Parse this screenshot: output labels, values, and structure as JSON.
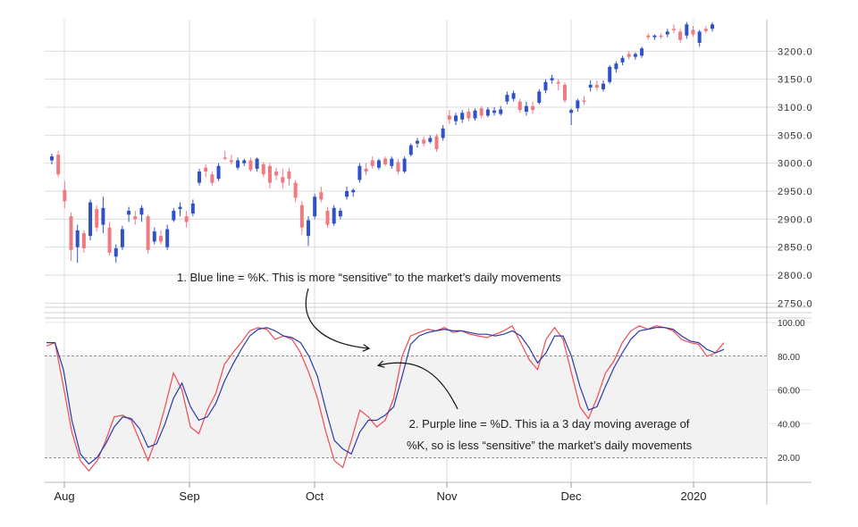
{
  "chart_data": [
    {
      "type": "candlestick",
      "title": "",
      "xlabel": "",
      "ylabel": "",
      "ylim": [
        2730,
        3250
      ],
      "y_ticks": [
        "3200.0",
        "3150.0",
        "3100.0",
        "3050.0",
        "3000.0",
        "2950.0",
        "2900.0",
        "2850.0",
        "2800.0",
        "2750.0"
      ],
      "x_ticks": [
        "Aug",
        "Sep",
        "Oct",
        "Nov",
        "Dec",
        "2020"
      ],
      "up_color": "#2f52c9",
      "down_color": "#ef7a82",
      "candles": [
        {
          "o": 3005,
          "h": 3017,
          "l": 2998,
          "c": 3012
        },
        {
          "o": 3015,
          "h": 3022,
          "l": 2975,
          "c": 2980
        },
        {
          "o": 2952,
          "h": 2968,
          "l": 2920,
          "c": 2932
        },
        {
          "o": 2905,
          "h": 2912,
          "l": 2825,
          "c": 2845
        },
        {
          "o": 2850,
          "h": 2890,
          "l": 2822,
          "c": 2880
        },
        {
          "o": 2875,
          "h": 2880,
          "l": 2840,
          "c": 2848
        },
        {
          "o": 2870,
          "h": 2935,
          "l": 2862,
          "c": 2930
        },
        {
          "o": 2918,
          "h": 2925,
          "l": 2878,
          "c": 2885
        },
        {
          "o": 2890,
          "h": 2940,
          "l": 2875,
          "c": 2920
        },
        {
          "o": 2885,
          "h": 2895,
          "l": 2835,
          "c": 2840
        },
        {
          "o": 2833,
          "h": 2855,
          "l": 2822,
          "c": 2848
        },
        {
          "o": 2850,
          "h": 2888,
          "l": 2845,
          "c": 2882
        },
        {
          "o": 2908,
          "h": 2922,
          "l": 2895,
          "c": 2915
        },
        {
          "o": 2905,
          "h": 2915,
          "l": 2890,
          "c": 2900
        },
        {
          "o": 2908,
          "h": 2925,
          "l": 2895,
          "c": 2920
        },
        {
          "o": 2905,
          "h": 2908,
          "l": 2838,
          "c": 2845
        },
        {
          "o": 2860,
          "h": 2885,
          "l": 2855,
          "c": 2878
        },
        {
          "o": 2870,
          "h": 2880,
          "l": 2855,
          "c": 2860
        },
        {
          "o": 2850,
          "h": 2890,
          "l": 2845,
          "c": 2882
        },
        {
          "o": 2898,
          "h": 2920,
          "l": 2895,
          "c": 2915
        },
        {
          "o": 2918,
          "h": 2930,
          "l": 2905,
          "c": 2922
        },
        {
          "o": 2905,
          "h": 2915,
          "l": 2885,
          "c": 2895
        },
        {
          "o": 2910,
          "h": 2935,
          "l": 2905,
          "c": 2928
        },
        {
          "o": 2965,
          "h": 2990,
          "l": 2960,
          "c": 2985
        },
        {
          "o": 2992,
          "h": 2998,
          "l": 2975,
          "c": 2985
        },
        {
          "o": 2980,
          "h": 2985,
          "l": 2960,
          "c": 2965
        },
        {
          "o": 2972,
          "h": 3000,
          "l": 2968,
          "c": 2995
        },
        {
          "o": 3010,
          "h": 3022,
          "l": 3005,
          "c": 3008
        },
        {
          "o": 3005,
          "h": 3015,
          "l": 2998,
          "c": 3002
        },
        {
          "o": 2992,
          "h": 3010,
          "l": 2988,
          "c": 3005
        },
        {
          "o": 3000,
          "h": 3008,
          "l": 2995,
          "c": 3005
        },
        {
          "o": 3005,
          "h": 3010,
          "l": 2985,
          "c": 2988
        },
        {
          "o": 2990,
          "h": 3010,
          "l": 2985,
          "c": 3008
        },
        {
          "o": 2998,
          "h": 3002,
          "l": 2975,
          "c": 2980
        },
        {
          "o": 2995,
          "h": 3000,
          "l": 2955,
          "c": 2965
        },
        {
          "o": 2985,
          "h": 2992,
          "l": 2970,
          "c": 2978
        },
        {
          "o": 2975,
          "h": 2990,
          "l": 2955,
          "c": 2965
        },
        {
          "o": 2985,
          "h": 2992,
          "l": 2960,
          "c": 2972
        },
        {
          "o": 2965,
          "h": 2970,
          "l": 2930,
          "c": 2938
        },
        {
          "o": 2925,
          "h": 2932,
          "l": 2872,
          "c": 2885
        },
        {
          "o": 2870,
          "h": 2905,
          "l": 2852,
          "c": 2898
        },
        {
          "o": 2905,
          "h": 2945,
          "l": 2900,
          "c": 2940
        },
        {
          "o": 2948,
          "h": 2958,
          "l": 2930,
          "c": 2935
        },
        {
          "o": 2915,
          "h": 2922,
          "l": 2885,
          "c": 2890
        },
        {
          "o": 2892,
          "h": 2925,
          "l": 2888,
          "c": 2920
        },
        {
          "o": 2905,
          "h": 2920,
          "l": 2900,
          "c": 2915
        },
        {
          "o": 2940,
          "h": 2958,
          "l": 2935,
          "c": 2950
        },
        {
          "o": 2948,
          "h": 2955,
          "l": 2940,
          "c": 2952
        },
        {
          "o": 2970,
          "h": 3000,
          "l": 2965,
          "c": 2995
        },
        {
          "o": 2990,
          "h": 3000,
          "l": 2978,
          "c": 2985
        },
        {
          "o": 3005,
          "h": 3012,
          "l": 2990,
          "c": 2995
        },
        {
          "o": 2992,
          "h": 3008,
          "l": 2988,
          "c": 3005
        },
        {
          "o": 3008,
          "h": 3012,
          "l": 2995,
          "c": 2998
        },
        {
          "o": 2995,
          "h": 3012,
          "l": 2990,
          "c": 3008
        },
        {
          "o": 3002,
          "h": 3008,
          "l": 2980,
          "c": 2985
        },
        {
          "o": 2985,
          "h": 3012,
          "l": 2982,
          "c": 3008
        },
        {
          "o": 3015,
          "h": 3035,
          "l": 3012,
          "c": 3032
        },
        {
          "o": 3035,
          "h": 3045,
          "l": 3028,
          "c": 3040
        },
        {
          "o": 3042,
          "h": 3048,
          "l": 3030,
          "c": 3035
        },
        {
          "o": 3038,
          "h": 3050,
          "l": 3035,
          "c": 3045
        },
        {
          "o": 3048,
          "h": 3052,
          "l": 3020,
          "c": 3025
        },
        {
          "o": 3045,
          "h": 3068,
          "l": 3040,
          "c": 3062
        },
        {
          "o": 3085,
          "h": 3095,
          "l": 3070,
          "c": 3078
        },
        {
          "o": 3075,
          "h": 3090,
          "l": 3068,
          "c": 3085
        },
        {
          "o": 3078,
          "h": 3095,
          "l": 3072,
          "c": 3090
        },
        {
          "o": 3092,
          "h": 3098,
          "l": 3075,
          "c": 3080
        },
        {
          "o": 3080,
          "h": 3098,
          "l": 3076,
          "c": 3094
        },
        {
          "o": 3098,
          "h": 3102,
          "l": 3080,
          "c": 3085
        },
        {
          "o": 3085,
          "h": 3100,
          "l": 3082,
          "c": 3096
        },
        {
          "o": 3090,
          "h": 3100,
          "l": 3085,
          "c": 3094
        },
        {
          "o": 3088,
          "h": 3102,
          "l": 3085,
          "c": 3096
        },
        {
          "o": 3110,
          "h": 3128,
          "l": 3105,
          "c": 3122
        },
        {
          "o": 3115,
          "h": 3130,
          "l": 3110,
          "c": 3125
        },
        {
          "o": 3110,
          "h": 3115,
          "l": 3090,
          "c": 3095
        },
        {
          "o": 3092,
          "h": 3110,
          "l": 3085,
          "c": 3102
        },
        {
          "o": 3102,
          "h": 3110,
          "l": 3088,
          "c": 3095
        },
        {
          "o": 3108,
          "h": 3132,
          "l": 3105,
          "c": 3128
        },
        {
          "o": 3130,
          "h": 3150,
          "l": 3125,
          "c": 3145
        },
        {
          "o": 3148,
          "h": 3158,
          "l": 3142,
          "c": 3152
        },
        {
          "o": 3145,
          "h": 3150,
          "l": 3130,
          "c": 3142
        },
        {
          "o": 3140,
          "h": 3145,
          "l": 3108,
          "c": 3112
        },
        {
          "o": 3090,
          "h": 3098,
          "l": 3068,
          "c": 3095
        },
        {
          "o": 3098,
          "h": 3115,
          "l": 3092,
          "c": 3112
        },
        {
          "o": 3112,
          "h": 3120,
          "l": 3105,
          "c": 3110
        },
        {
          "o": 3135,
          "h": 3148,
          "l": 3128,
          "c": 3140
        },
        {
          "o": 3140,
          "h": 3148,
          "l": 3130,
          "c": 3135
        },
        {
          "o": 3132,
          "h": 3148,
          "l": 3128,
          "c": 3142
        },
        {
          "o": 3145,
          "h": 3175,
          "l": 3142,
          "c": 3172
        },
        {
          "o": 3168,
          "h": 3182,
          "l": 3162,
          "c": 3178
        },
        {
          "o": 3180,
          "h": 3192,
          "l": 3175,
          "c": 3188
        },
        {
          "o": 3195,
          "h": 3200,
          "l": 3185,
          "c": 3190
        },
        {
          "o": 3190,
          "h": 3198,
          "l": 3185,
          "c": 3195
        },
        {
          "o": 3192,
          "h": 3208,
          "l": 3188,
          "c": 3205
        },
        {
          "o": 3228,
          "h": 3232,
          "l": 3220,
          "c": 3225
        },
        {
          "o": 3225,
          "h": 3230,
          "l": 3220,
          "c": 3228
        },
        {
          "o": 3228,
          "h": 3232,
          "l": 3222,
          "c": 3226
        },
        {
          "o": 3230,
          "h": 3240,
          "l": 3225,
          "c": 3235
        },
        {
          "o": 3240,
          "h": 3248,
          "l": 3232,
          "c": 3238
        },
        {
          "o": 3235,
          "h": 3240,
          "l": 3215,
          "c": 3220
        },
        {
          "o": 3228,
          "h": 3252,
          "l": 3222,
          "c": 3248
        },
        {
          "o": 3238,
          "h": 3245,
          "l": 3226,
          "c": 3230
        },
        {
          "o": 3215,
          "h": 3238,
          "l": 3208,
          "c": 3235
        },
        {
          "o": 3240,
          "h": 3245,
          "l": 3232,
          "c": 3236
        },
        {
          "o": 3240,
          "h": 3252,
          "l": 3235,
          "c": 3248
        }
      ]
    },
    {
      "type": "line",
      "title": "",
      "xlabel": "",
      "ylabel": "",
      "ylim": [
        5,
        105
      ],
      "y_ticks": [
        "100.00",
        "80.00",
        "60.00",
        "40.00",
        "20.00"
      ],
      "x_ticks": [
        "Aug",
        "Sep",
        "Oct",
        "Nov",
        "Dec",
        "2020"
      ],
      "overbought": 80,
      "oversold": 20,
      "grid": true,
      "series": [
        {
          "color": "#ef4a55",
          "values": [
            86,
            88,
            62,
            35,
            18,
            12,
            18,
            30,
            44,
            45,
            42,
            30,
            18,
            32,
            50,
            70,
            60,
            38,
            34,
            48,
            58,
            75,
            82,
            88,
            95,
            97,
            96,
            90,
            92,
            90,
            82,
            70,
            55,
            35,
            18,
            14,
            30,
            48,
            44,
            38,
            42,
            55,
            80,
            92,
            94,
            96,
            95,
            97,
            94,
            95,
            93,
            92,
            91,
            93,
            95,
            98,
            88,
            78,
            72,
            90,
            97,
            90,
            70,
            50,
            43,
            55,
            70,
            77,
            88,
            95,
            98,
            96,
            98,
            97,
            95,
            90,
            88,
            87,
            80,
            82,
            88
          ]
        },
        {
          "color": "#2a3aa8",
          "values": [
            88,
            88,
            72,
            42,
            22,
            16,
            20,
            28,
            38,
            44,
            43,
            37,
            26,
            28,
            40,
            55,
            64,
            50,
            42,
            44,
            52,
            65,
            75,
            84,
            92,
            96,
            97,
            95,
            92,
            91,
            88,
            80,
            68,
            48,
            30,
            25,
            22,
            35,
            42,
            42,
            45,
            50,
            68,
            87,
            92,
            94,
            95,
            96,
            95,
            95,
            94,
            93,
            93,
            92,
            93,
            95,
            92,
            85,
            76,
            82,
            92,
            92,
            80,
            62,
            48,
            50,
            62,
            73,
            82,
            90,
            95,
            96,
            97,
            97,
            96,
            92,
            89,
            88,
            84,
            82,
            84
          ]
        }
      ]
    }
  ],
  "annotations": {
    "note_1": "1. Blue line = %K. This is more “sensitive” to the market’s daily movements",
    "note_2_line1": "2. Purple line = %D. This ia a 3 day moving average of",
    "note_2_line2": "%K, so is less “sensitive” the market’s daily movements"
  }
}
